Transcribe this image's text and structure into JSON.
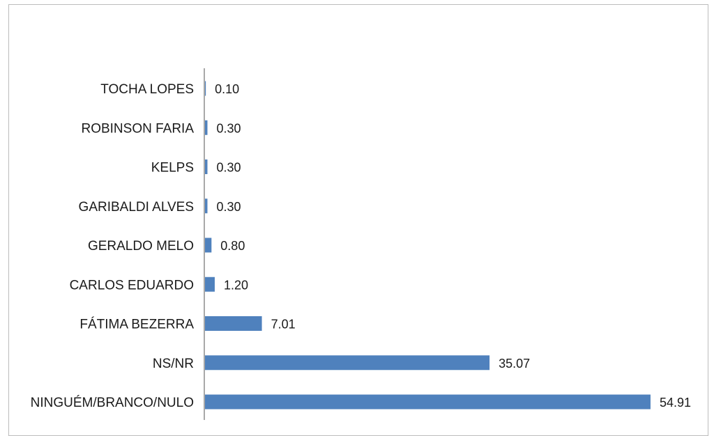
{
  "chart_data": {
    "type": "bar",
    "orientation": "horizontal",
    "categories": [
      "TOCHA LOPES",
      "ROBINSON FARIA",
      "KELPS",
      "GARIBALDI ALVES",
      "GERALDO MELO",
      "CARLOS EDUARDO",
      "FÁTIMA BEZERRA",
      "NS/NR",
      "NINGUÉM/BRANCO/NULO"
    ],
    "values": [
      0.1,
      0.3,
      0.3,
      0.3,
      0.8,
      1.2,
      7.01,
      35.07,
      54.91
    ],
    "value_labels": [
      "0.10",
      "0.30",
      "0.30",
      "0.30",
      "0.80",
      "1.20",
      "7.01",
      "35.07",
      "54.91"
    ],
    "title": "",
    "xlabel": "",
    "ylabel": "",
    "xlim": [
      0,
      55
    ],
    "grid": false,
    "legend": "none",
    "bar_color": "#4f81bd"
  }
}
